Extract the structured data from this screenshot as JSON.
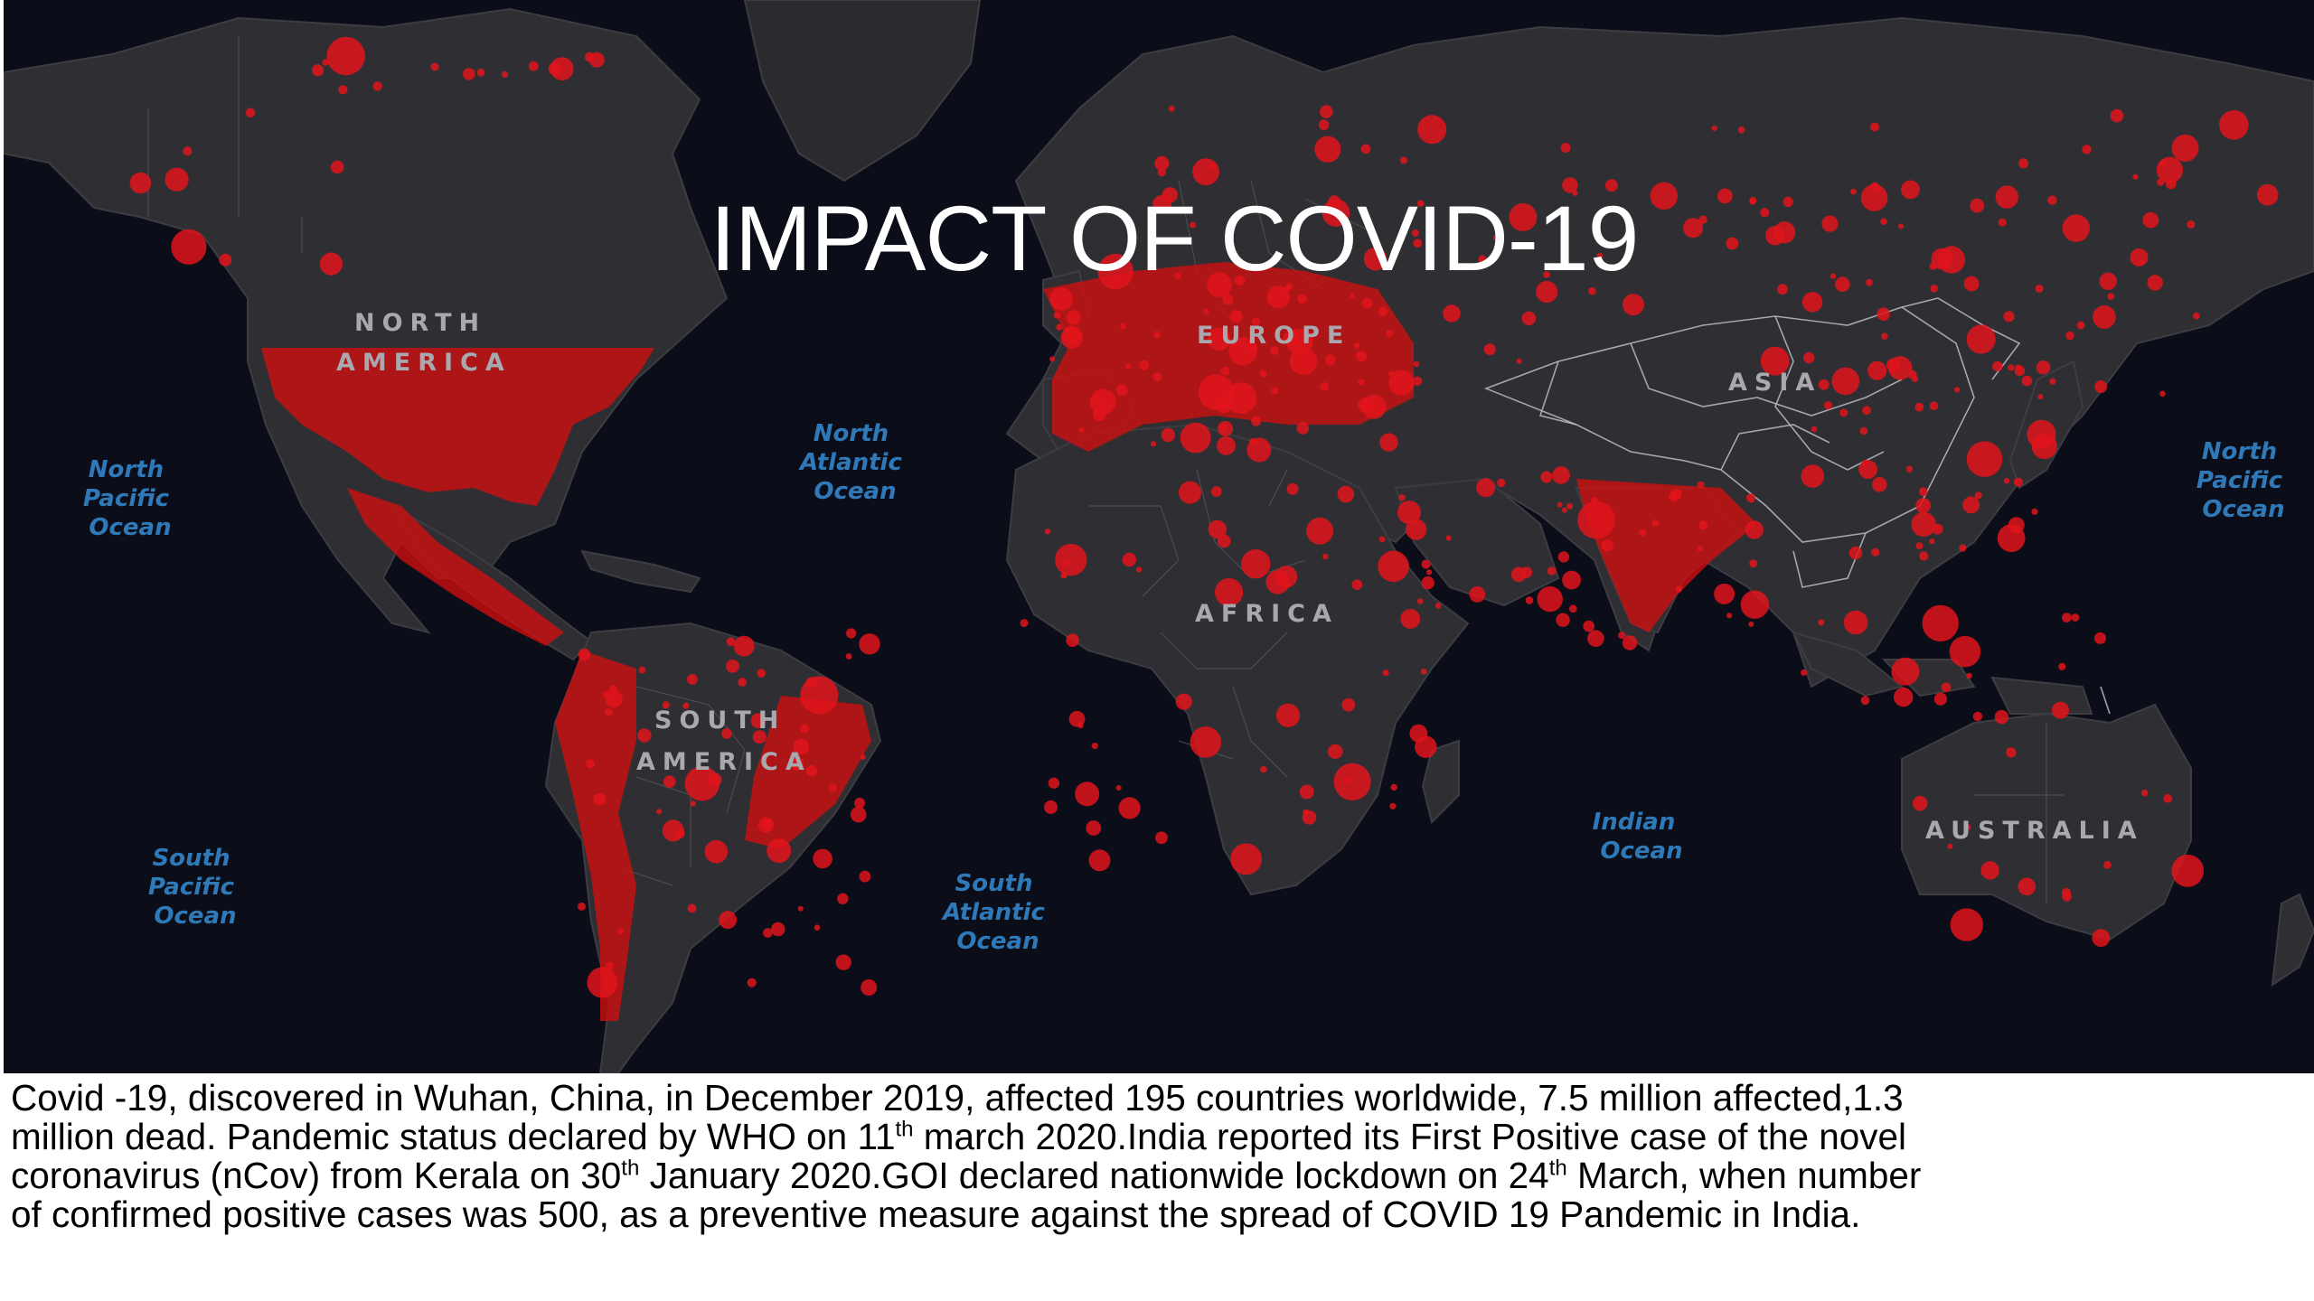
{
  "slide": {
    "title": "IMPACT OF COVID-19"
  },
  "map": {
    "continent_labels": [
      "NORTH",
      "AMERICA",
      "EUROPE",
      "ASIA",
      "AFRICA",
      "SOUTH",
      "AMERICA",
      "AUSTRALIA"
    ],
    "ocean_labels": [
      [
        "North",
        "Pacific",
        "Ocean"
      ],
      [
        "North",
        "Atlantic",
        "Ocean"
      ],
      [
        "North",
        "Pacific",
        "Ocean"
      ],
      [
        "South",
        "Pacific",
        "Ocean"
      ],
      [
        "South",
        "Atlantic",
        "Ocean"
      ],
      [
        "Indian",
        "Ocean"
      ]
    ],
    "colors": {
      "ocean": "#0b0d18",
      "land": "#2f2f33",
      "cases": "#d10e0e",
      "ocean_label": "#2f79b8",
      "continent_label": "#a8a8ae"
    }
  },
  "caption": {
    "l1": "Covid -19, discovered in Wuhan, China, in December 2019, affected 195 countries worldwide, 7.5 million affected,1.3",
    "l2a": "million dead. Pandemic status declared by WHO on 11",
    "l2sup": "th",
    "l2b": " march 2020.India reported its First Positive case of the novel",
    "l3a": "coronavirus (nCov) from Kerala on 30",
    "l3sup": "th",
    "l3b": " January 2020.GOI declared nationwide lockdown on 24",
    "l3sup2": "th",
    "l3c": " March, when number",
    "l4": "of confirmed positive cases was 500, as a preventive measure against the spread of COVID 19 Pandemic in India."
  }
}
